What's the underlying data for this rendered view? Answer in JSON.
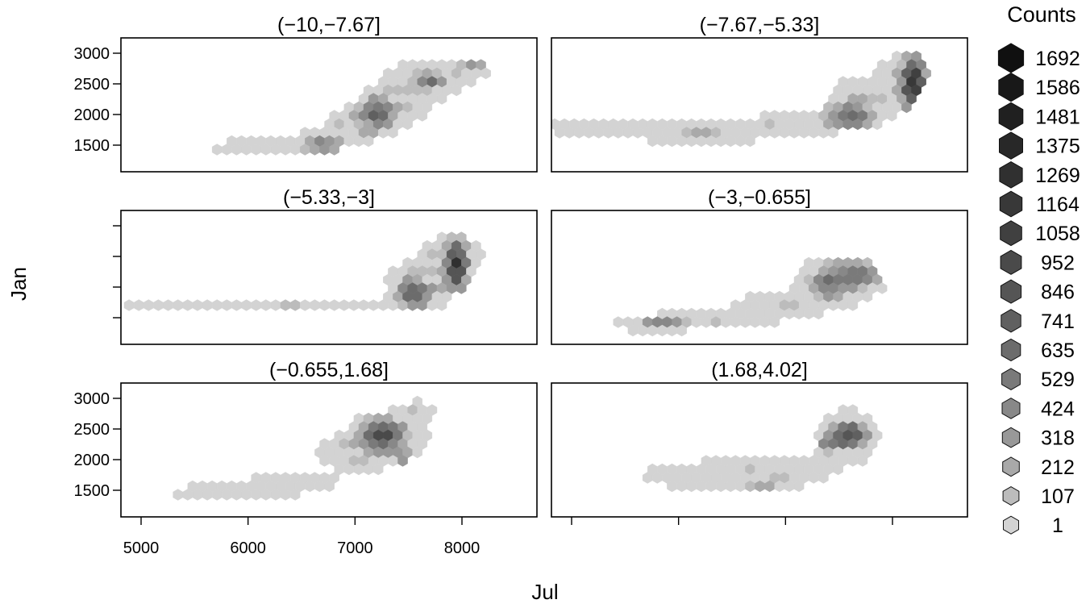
{
  "chart_data": {
    "type": "heatmap",
    "subtype": "hexbin-trellis",
    "xlabel": "Jul",
    "ylabel": "Jan",
    "x_ticks": [
      5000,
      6000,
      7000,
      8000
    ],
    "y_ticks": [
      1500,
      2000,
      2500,
      3000
    ],
    "xlim": [
      4800,
      8700
    ],
    "ylim": [
      1050,
      3200
    ],
    "legend": {
      "title": "Counts",
      "position": "right",
      "labels": [
        "1692",
        "1586",
        "1481",
        "1375",
        "1269",
        "1164",
        "1058",
        "952",
        "846",
        "741",
        "635",
        "529",
        "424",
        "318",
        "212",
        "107",
        "1"
      ],
      "colors": [
        "#101010",
        "#181818",
        "#202020",
        "#282828",
        "#303030",
        "#383838",
        "#404040",
        "#4a4a4a",
        "#555555",
        "#606060",
        "#6c6c6c",
        "#7a7a7a",
        "#888888",
        "#989898",
        "#a9a9a9",
        "#bcbcbc",
        "#d3d3d3"
      ]
    },
    "panels": [
      {
        "title": "(−10,−7.67]",
        "blobs": [
          {
            "x": 5900,
            "y": 1430,
            "sx": 250,
            "sy": 110,
            "w": 1
          },
          {
            "x": 6500,
            "y": 1530,
            "sx": 300,
            "sy": 120,
            "w": 1.4
          },
          {
            "x": 7050,
            "y": 1850,
            "sx": 230,
            "sy": 170,
            "w": 1.8
          },
          {
            "x": 7300,
            "y": 2100,
            "sx": 200,
            "sy": 200,
            "w": 1.6
          },
          {
            "x": 7600,
            "y": 2450,
            "sx": 230,
            "sy": 220,
            "w": 1.5
          },
          {
            "x": 7900,
            "y": 2700,
            "sx": 280,
            "sy": 170,
            "w": 1.1
          }
        ],
        "hotspots": [
          {
            "x": 7200,
            "y": 2000,
            "sx": 100,
            "sy": 150,
            "w": 3.5
          },
          {
            "x": 6700,
            "y": 1500,
            "sx": 120,
            "sy": 80,
            "w": 2.5
          },
          {
            "x": 7700,
            "y": 2550,
            "sx": 80,
            "sy": 90,
            "w": 2.5
          },
          {
            "x": 8100,
            "y": 2800,
            "sx": 80,
            "sy": 70,
            "w": 2
          }
        ]
      },
      {
        "title": "(−7.67,−5.33]",
        "blobs": [
          {
            "x": 5100,
            "y": 1800,
            "sx": 480,
            "sy": 120,
            "w": 1
          },
          {
            "x": 6100,
            "y": 1700,
            "sx": 500,
            "sy": 140,
            "w": 1
          },
          {
            "x": 7000,
            "y": 1800,
            "sx": 350,
            "sy": 150,
            "w": 1.2
          },
          {
            "x": 7700,
            "y": 2200,
            "sx": 220,
            "sy": 250,
            "w": 1.8
          },
          {
            "x": 8100,
            "y": 2600,
            "sx": 140,
            "sy": 280,
            "w": 2
          }
        ],
        "hotspots": [
          {
            "x": 8200,
            "y": 2500,
            "sx": 70,
            "sy": 280,
            "w": 6
          },
          {
            "x": 7600,
            "y": 1950,
            "sx": 150,
            "sy": 150,
            "w": 3
          },
          {
            "x": 6200,
            "y": 1650,
            "sx": 150,
            "sy": 50,
            "w": 2
          }
        ]
      },
      {
        "title": "(−5.33,−3]",
        "blobs": [
          {
            "x": 5600,
            "y": 1700,
            "sx": 700,
            "sy": 80,
            "w": 1.1
          },
          {
            "x": 6800,
            "y": 1700,
            "sx": 450,
            "sy": 90,
            "w": 1.1
          },
          {
            "x": 7600,
            "y": 2000,
            "sx": 200,
            "sy": 250,
            "w": 2
          },
          {
            "x": 7900,
            "y": 2450,
            "sx": 180,
            "sy": 250,
            "w": 2.2
          }
        ],
        "hotspots": [
          {
            "x": 7950,
            "y": 2350,
            "sx": 60,
            "sy": 250,
            "w": 6
          },
          {
            "x": 7550,
            "y": 1900,
            "sx": 110,
            "sy": 140,
            "w": 3.5
          },
          {
            "x": 6500,
            "y": 1520,
            "sx": 60,
            "sy": 60,
            "w": 3
          }
        ]
      },
      {
        "title": "(−3,−0.655]",
        "blobs": [
          {
            "x": 5700,
            "y": 1400,
            "sx": 300,
            "sy": 100,
            "w": 1
          },
          {
            "x": 6300,
            "y": 1450,
            "sx": 400,
            "sy": 110,
            "w": 1.1
          },
          {
            "x": 6900,
            "y": 1700,
            "sx": 320,
            "sy": 150,
            "w": 1.2
          },
          {
            "x": 7500,
            "y": 2100,
            "sx": 300,
            "sy": 300,
            "w": 1.5
          }
        ],
        "hotspots": [
          {
            "x": 7550,
            "y": 2550,
            "sx": 140,
            "sy": 80,
            "w": 5.5
          },
          {
            "x": 7700,
            "y": 2200,
            "sx": 120,
            "sy": 120,
            "w": 3
          },
          {
            "x": 7400,
            "y": 2050,
            "sx": 120,
            "sy": 160,
            "w": 2.5
          },
          {
            "x": 5900,
            "y": 1450,
            "sx": 150,
            "sy": 50,
            "w": 2
          }
        ]
      },
      {
        "title": "(−0.655,1.68]",
        "blobs": [
          {
            "x": 5700,
            "y": 1450,
            "sx": 350,
            "sy": 120,
            "w": 1.1
          },
          {
            "x": 6400,
            "y": 1600,
            "sx": 350,
            "sy": 140,
            "w": 1.1
          },
          {
            "x": 7000,
            "y": 2100,
            "sx": 300,
            "sy": 200,
            "w": 1.2
          },
          {
            "x": 7300,
            "y": 2400,
            "sx": 250,
            "sy": 250,
            "w": 1.8
          },
          {
            "x": 7600,
            "y": 2800,
            "sx": 150,
            "sy": 120,
            "w": 1
          }
        ],
        "hotspots": [
          {
            "x": 7250,
            "y": 2400,
            "sx": 120,
            "sy": 170,
            "w": 4.5
          },
          {
            "x": 7500,
            "y": 1900,
            "sx": 80,
            "sy": 150,
            "w": 2.5
          },
          {
            "x": 6100,
            "y": 1300,
            "sx": 80,
            "sy": 80,
            "w": 2
          }
        ]
      },
      {
        "title": "(1.68,4.02]",
        "blobs": [
          {
            "x": 6200,
            "y": 1750,
            "sx": 450,
            "sy": 180,
            "w": 1.1
          },
          {
            "x": 7000,
            "y": 1800,
            "sx": 350,
            "sy": 200,
            "w": 1.1
          },
          {
            "x": 7600,
            "y": 2400,
            "sx": 220,
            "sy": 300,
            "w": 1.5
          }
        ],
        "hotspots": [
          {
            "x": 7600,
            "y": 2400,
            "sx": 110,
            "sy": 120,
            "w": 4.5
          },
          {
            "x": 7400,
            "y": 2250,
            "sx": 80,
            "sy": 80,
            "w": 2.5
          },
          {
            "x": 6800,
            "y": 1600,
            "sx": 120,
            "sy": 40,
            "w": 1.5
          },
          {
            "x": 7100,
            "y": 1450,
            "sx": 150,
            "sy": 40,
            "w": 1.5
          }
        ]
      }
    ]
  }
}
